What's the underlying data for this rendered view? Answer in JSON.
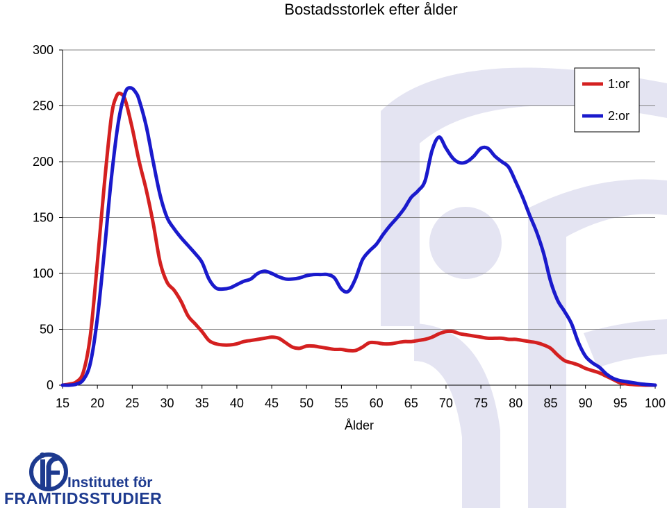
{
  "chart_data": {
    "type": "line",
    "title": "Bostadsstorlek efter ålder",
    "xlabel": "Ålder",
    "ylabel": "",
    "xlim": [
      15,
      100
    ],
    "ylim": [
      0,
      300
    ],
    "x_ticks": [
      15,
      20,
      25,
      30,
      35,
      40,
      45,
      50,
      55,
      60,
      65,
      70,
      75,
      80,
      85,
      90,
      95,
      100
    ],
    "y_ticks": [
      0,
      50,
      100,
      150,
      200,
      250,
      300
    ],
    "grid": "horizontal",
    "legend_position": "top-right",
    "series": [
      {
        "name": "1:or",
        "color": "#d42020",
        "points": [
          [
            15,
            0
          ],
          [
            16,
            1
          ],
          [
            17,
            3
          ],
          [
            18,
            12
          ],
          [
            19,
            45
          ],
          [
            20,
            110
          ],
          [
            21,
            180
          ],
          [
            22,
            240
          ],
          [
            22.7,
            258
          ],
          [
            23.3,
            261
          ],
          [
            24,
            255
          ],
          [
            25,
            230
          ],
          [
            26,
            200
          ],
          [
            27,
            175
          ],
          [
            28,
            145
          ],
          [
            29,
            110
          ],
          [
            30,
            92
          ],
          [
            31,
            85
          ],
          [
            32,
            75
          ],
          [
            33,
            62
          ],
          [
            34,
            55
          ],
          [
            35,
            48
          ],
          [
            36,
            40
          ],
          [
            37,
            37
          ],
          [
            38,
            36
          ],
          [
            39,
            36
          ],
          [
            40,
            37
          ],
          [
            41,
            39
          ],
          [
            42,
            40
          ],
          [
            43,
            41
          ],
          [
            44,
            42
          ],
          [
            45,
            43
          ],
          [
            46,
            42
          ],
          [
            47,
            38
          ],
          [
            48,
            34
          ],
          [
            49,
            33
          ],
          [
            50,
            35
          ],
          [
            51,
            35
          ],
          [
            52,
            34
          ],
          [
            53,
            33
          ],
          [
            54,
            32
          ],
          [
            55,
            32
          ],
          [
            56,
            31
          ],
          [
            57,
            31
          ],
          [
            58,
            34
          ],
          [
            59,
            38
          ],
          [
            60,
            38
          ],
          [
            61,
            37
          ],
          [
            62,
            37
          ],
          [
            63,
            38
          ],
          [
            64,
            39
          ],
          [
            65,
            39
          ],
          [
            66,
            40
          ],
          [
            67,
            41
          ],
          [
            68,
            43
          ],
          [
            69,
            46
          ],
          [
            70,
            48
          ],
          [
            71,
            48
          ],
          [
            72,
            46
          ],
          [
            73,
            45
          ],
          [
            74,
            44
          ],
          [
            75,
            43
          ],
          [
            76,
            42
          ],
          [
            77,
            42
          ],
          [
            78,
            42
          ],
          [
            79,
            41
          ],
          [
            80,
            41
          ],
          [
            81,
            40
          ],
          [
            82,
            39
          ],
          [
            83,
            38
          ],
          [
            84,
            36
          ],
          [
            85,
            33
          ],
          [
            86,
            27
          ],
          [
            87,
            22
          ],
          [
            88,
            20
          ],
          [
            89,
            18
          ],
          [
            90,
            15
          ],
          [
            91,
            13
          ],
          [
            92,
            11
          ],
          [
            93,
            8
          ],
          [
            94,
            5
          ],
          [
            95,
            2
          ],
          [
            96,
            1
          ],
          [
            97,
            0.5
          ],
          [
            98,
            0.2
          ],
          [
            99,
            0
          ],
          [
            100,
            0
          ]
        ]
      },
      {
        "name": "2:or",
        "color": "#1a1acc",
        "points": [
          [
            15,
            0
          ],
          [
            16,
            0
          ],
          [
            17,
            1
          ],
          [
            18,
            5
          ],
          [
            19,
            20
          ],
          [
            20,
            60
          ],
          [
            21,
            120
          ],
          [
            22,
            185
          ],
          [
            23,
            235
          ],
          [
            24,
            262
          ],
          [
            24.8,
            266
          ],
          [
            25.5,
            262
          ],
          [
            26,
            255
          ],
          [
            27,
            232
          ],
          [
            28,
            200
          ],
          [
            29,
            170
          ],
          [
            30,
            150
          ],
          [
            31,
            140
          ],
          [
            32,
            132
          ],
          [
            33,
            125
          ],
          [
            34,
            118
          ],
          [
            35,
            110
          ],
          [
            36,
            95
          ],
          [
            37,
            87
          ],
          [
            38,
            86
          ],
          [
            39,
            87
          ],
          [
            40,
            90
          ],
          [
            41,
            93
          ],
          [
            42,
            95
          ],
          [
            43,
            100
          ],
          [
            44,
            102
          ],
          [
            45,
            100
          ],
          [
            46,
            97
          ],
          [
            47,
            95
          ],
          [
            48,
            95
          ],
          [
            49,
            96
          ],
          [
            50,
            98
          ],
          [
            51,
            99
          ],
          [
            52,
            99
          ],
          [
            53,
            99
          ],
          [
            54,
            96
          ],
          [
            55,
            86
          ],
          [
            56,
            84
          ],
          [
            57,
            95
          ],
          [
            58,
            112
          ],
          [
            59,
            120
          ],
          [
            60,
            126
          ],
          [
            61,
            135
          ],
          [
            62,
            143
          ],
          [
            63,
            150
          ],
          [
            64,
            158
          ],
          [
            65,
            168
          ],
          [
            66,
            174
          ],
          [
            67,
            183
          ],
          [
            68,
            210
          ],
          [
            69,
            222
          ],
          [
            70,
            212
          ],
          [
            71,
            203
          ],
          [
            72,
            199
          ],
          [
            73,
            200
          ],
          [
            74,
            205
          ],
          [
            75,
            212
          ],
          [
            76,
            212
          ],
          [
            77,
            205
          ],
          [
            78,
            200
          ],
          [
            79,
            195
          ],
          [
            80,
            182
          ],
          [
            81,
            168
          ],
          [
            82,
            152
          ],
          [
            83,
            137
          ],
          [
            84,
            118
          ],
          [
            85,
            93
          ],
          [
            86,
            76
          ],
          [
            87,
            66
          ],
          [
            88,
            55
          ],
          [
            89,
            38
          ],
          [
            90,
            26
          ],
          [
            91,
            20
          ],
          [
            92,
            16
          ],
          [
            93,
            10
          ],
          [
            94,
            6
          ],
          [
            95,
            4
          ],
          [
            96,
            3
          ],
          [
            97,
            2
          ],
          [
            98,
            1
          ],
          [
            99,
            0.5
          ],
          [
            100,
            0
          ]
        ]
      }
    ]
  },
  "logo": {
    "line1": "Institutet för",
    "line2": "FRAMTIDSSTUDIER",
    "mark_color": "#1d3a8f",
    "watermark_color": "#e4e4f2"
  }
}
